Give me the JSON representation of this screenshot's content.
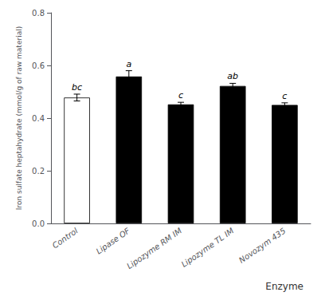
{
  "chart_data": {
    "type": "bar",
    "categories": [
      "Control",
      "Lipase OF",
      "Lipozyme RM IM",
      "Lipozyme TL IM",
      "Novozym 435"
    ],
    "values": [
      0.478,
      0.558,
      0.452,
      0.522,
      0.45
    ],
    "errors": [
      0.013,
      0.022,
      0.008,
      0.01,
      0.008
    ],
    "colors": [
      "white",
      "black",
      "black",
      "black",
      "black"
    ],
    "annotations": [
      "bc",
      "a",
      "c",
      "ab",
      "c"
    ],
    "ylabel": "Iron sulfate heptahydrate (mmol/g of raw material)",
    "xlabel": "Enzyme",
    "ylim": [
      0.0,
      0.8
    ],
    "yticks": [
      {
        "value": 0.0,
        "label": "0.0"
      },
      0.2,
      0.4,
      0.6,
      0.8
    ],
    "grid": false
  }
}
